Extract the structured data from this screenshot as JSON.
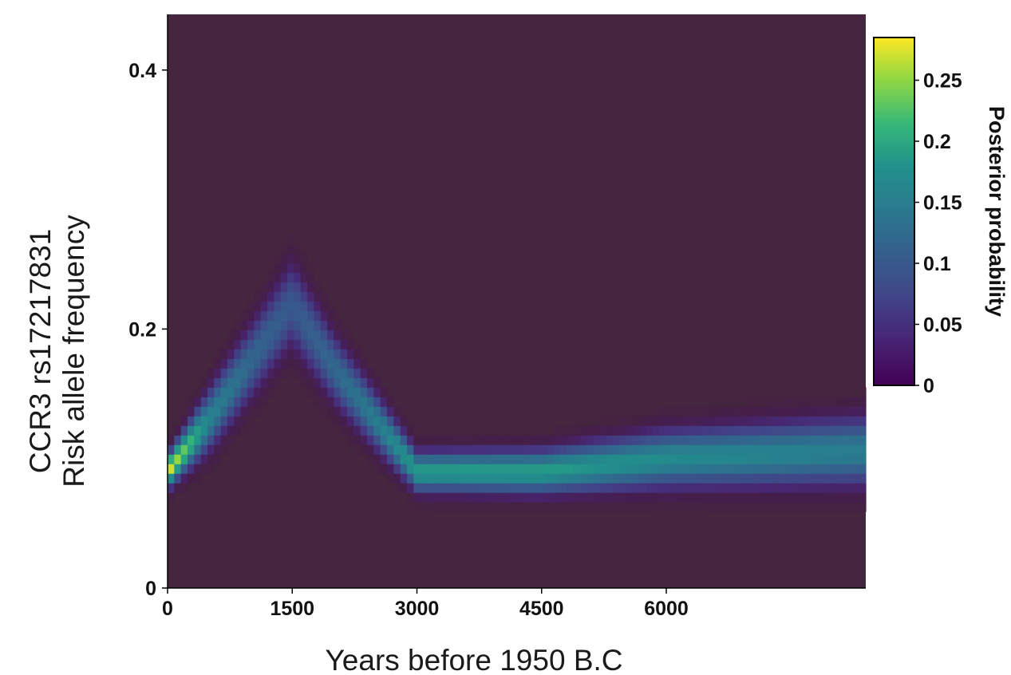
{
  "chart_data": {
    "type": "heatmap",
    "xlabel": "Years before 1950 B.C",
    "ylabel_lines": [
      "CCR3 rs17217831",
      "Risk allele frequency"
    ],
    "x_ticks": [
      {
        "value": 0,
        "label": "0"
      },
      {
        "value": 1500,
        "label": "1500"
      },
      {
        "value": 3000,
        "label": "3000"
      },
      {
        "value": 4500,
        "label": "4500"
      },
      {
        "value": 6000,
        "label": "6000"
      }
    ],
    "y_ticks": [
      {
        "value": 0,
        "label": "0"
      },
      {
        "value": 0.2,
        "label": "0.2"
      },
      {
        "value": 0.4,
        "label": "0.4"
      }
    ],
    "xlim": [
      0,
      8400
    ],
    "ylim": [
      0,
      0.443
    ],
    "grid": false,
    "colormap": "viridis",
    "colorbar": {
      "title": "Posterior probability",
      "range": [
        0,
        0.285
      ],
      "ticks": [
        {
          "value": 0,
          "label": "0"
        },
        {
          "value": 0.05,
          "label": "0.05"
        },
        {
          "value": 0.1,
          "label": "0.1"
        },
        {
          "value": 0.15,
          "label": "0.15"
        },
        {
          "value": 0.2,
          "label": "0.2"
        },
        {
          "value": 0.25,
          "label": "0.25"
        }
      ]
    },
    "posterior_ridge": [
      {
        "years": 0,
        "frequency": 0.09,
        "peak_probability": 0.28,
        "spread": 0.008
      },
      {
        "years": 500,
        "frequency": 0.13,
        "peak_probability": 0.16,
        "spread": 0.015
      },
      {
        "years": 1000,
        "frequency": 0.175,
        "peak_probability": 0.12,
        "spread": 0.018
      },
      {
        "years": 1500,
        "frequency": 0.22,
        "peak_probability": 0.1,
        "spread": 0.021
      },
      {
        "years": 2000,
        "frequency": 0.17,
        "peak_probability": 0.12,
        "spread": 0.017
      },
      {
        "years": 2500,
        "frequency": 0.13,
        "peak_probability": 0.15,
        "spread": 0.014
      },
      {
        "years": 3000,
        "frequency": 0.09,
        "peak_probability": 0.19,
        "spread": 0.01
      },
      {
        "years": 4500,
        "frequency": 0.09,
        "peak_probability": 0.19,
        "spread": 0.011
      },
      {
        "years": 6000,
        "frequency": 0.1,
        "peak_probability": 0.17,
        "spread": 0.014
      },
      {
        "years": 8400,
        "frequency": 0.106,
        "peak_probability": 0.15,
        "spread": 0.017
      }
    ],
    "background_color": "#45263f"
  }
}
